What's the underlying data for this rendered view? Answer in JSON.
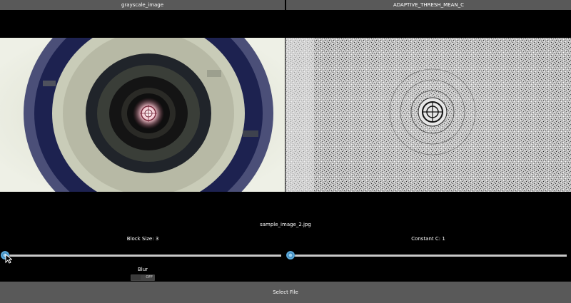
{
  "tabs": {
    "left": "grayscale_image",
    "right": "ADAPTIVE_THRESH_MEAN_C"
  },
  "file_name": "sample_image_2.jpg",
  "controls": {
    "block_size_label": "Block Size: 3",
    "constant_c_label": "Constant C: 1",
    "block_size_slider_fraction": 0.0,
    "constant_c_slider_fraction": 0.0,
    "blur_label": "Blur",
    "blur_switch_text": "OFF"
  },
  "select_file_label": "Select File",
  "colors": {
    "slider_knob": "#2e7db4",
    "bar_background": "#595959"
  }
}
